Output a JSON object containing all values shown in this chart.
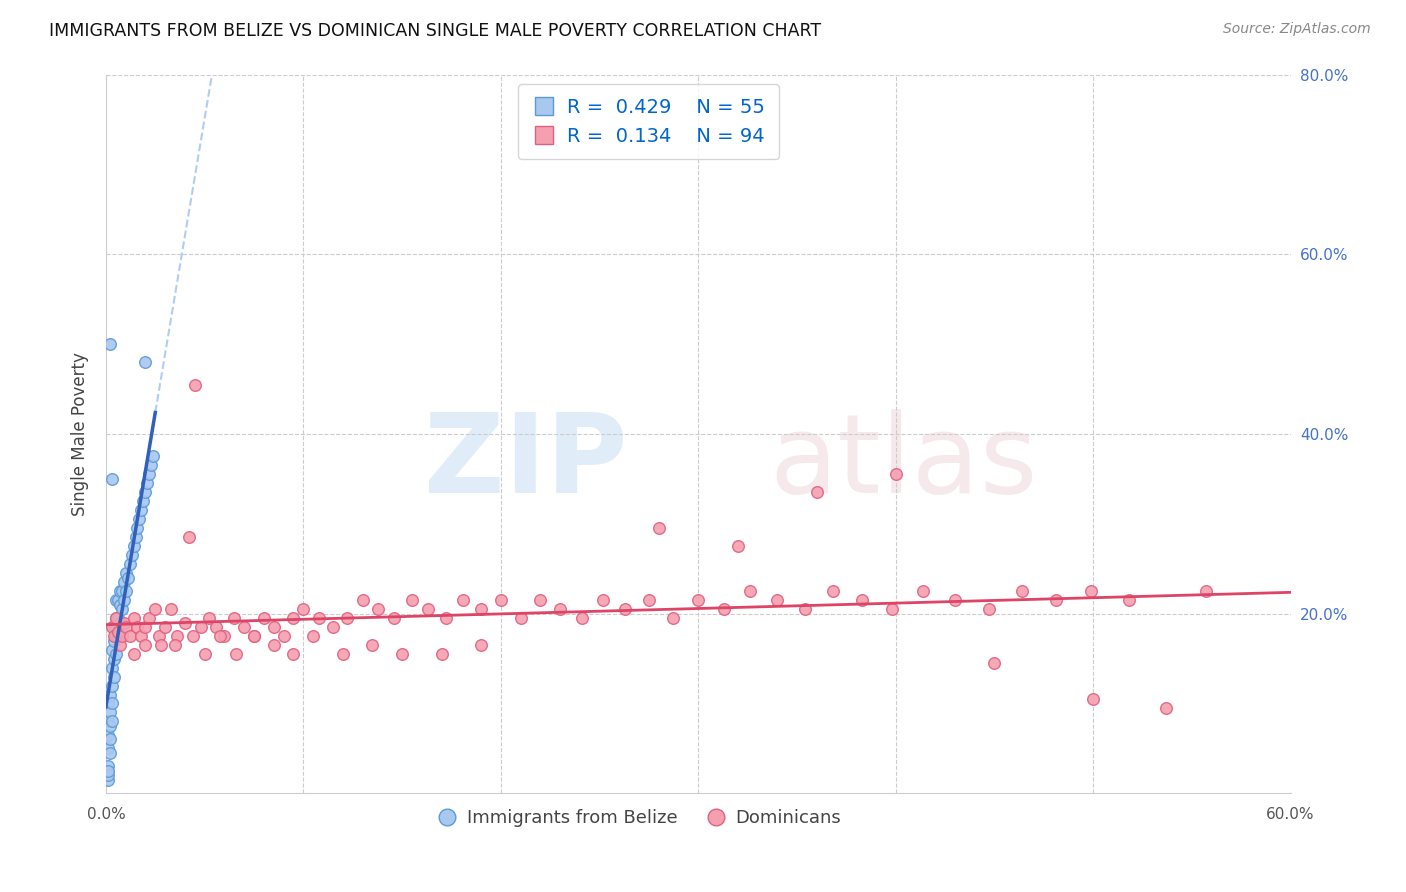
{
  "title": "IMMIGRANTS FROM BELIZE VS DOMINICAN SINGLE MALE POVERTY CORRELATION CHART",
  "source": "Source: ZipAtlas.com",
  "ylabel": "Single Male Poverty",
  "xlim": [
    0.0,
    0.6
  ],
  "ylim": [
    0.0,
    0.8
  ],
  "xtick_vals": [
    0.0,
    0.1,
    0.2,
    0.3,
    0.4,
    0.5,
    0.6
  ],
  "xticklabels": [
    "0.0%",
    "",
    "",
    "",
    "",
    "",
    "60.0%"
  ],
  "ytick_right_vals": [
    0.2,
    0.4,
    0.6,
    0.8
  ],
  "yticklabels_right": [
    "20.0%",
    "40.0%",
    "60.0%",
    "80.0%"
  ],
  "belize_fill": "#a8c8f0",
  "belize_edge": "#5b9bd5",
  "dominican_fill": "#f4a0b0",
  "dominican_edge": "#e06080",
  "trend_belize_color": "#3060bb",
  "trend_dominican_color": "#dd4466",
  "belize_R": 0.429,
  "belize_N": 55,
  "dominican_R": 0.134,
  "dominican_N": 94,
  "legend_belize_label": "Immigrants from Belize",
  "legend_dominican_label": "Dominicans",
  "grid_color": "#cccccc",
  "bg_color": "#ffffff",
  "right_axis_color": "#4472c4",
  "legend_R_color": "#0066cc",
  "legend_N_color": "#0066cc",
  "belize_x": [
    0.001,
    0.001,
    0.001,
    0.001,
    0.001,
    0.002,
    0.002,
    0.002,
    0.002,
    0.002,
    0.003,
    0.003,
    0.003,
    0.003,
    0.003,
    0.004,
    0.004,
    0.004,
    0.004,
    0.005,
    0.005,
    0.005,
    0.005,
    0.006,
    0.006,
    0.006,
    0.007,
    0.007,
    0.007,
    0.008,
    0.008,
    0.009,
    0.009,
    0.01,
    0.01,
    0.011,
    0.012,
    0.013,
    0.014,
    0.015,
    0.016,
    0.017,
    0.018,
    0.019,
    0.02,
    0.021,
    0.022,
    0.023,
    0.024,
    0.003,
    0.002,
    0.001,
    0.001,
    0.001,
    0.02
  ],
  "belize_y": [
    0.03,
    0.05,
    0.065,
    0.08,
    0.1,
    0.045,
    0.06,
    0.075,
    0.09,
    0.11,
    0.08,
    0.1,
    0.12,
    0.14,
    0.16,
    0.13,
    0.15,
    0.17,
    0.185,
    0.155,
    0.175,
    0.195,
    0.215,
    0.175,
    0.195,
    0.215,
    0.19,
    0.21,
    0.225,
    0.205,
    0.225,
    0.215,
    0.235,
    0.225,
    0.245,
    0.24,
    0.255,
    0.265,
    0.275,
    0.285,
    0.295,
    0.305,
    0.315,
    0.325,
    0.335,
    0.345,
    0.355,
    0.365,
    0.375,
    0.35,
    0.5,
    0.015,
    0.02,
    0.025,
    0.48
  ],
  "dominican_x": [
    0.003,
    0.004,
    0.005,
    0.006,
    0.007,
    0.008,
    0.009,
    0.01,
    0.012,
    0.014,
    0.016,
    0.018,
    0.02,
    0.022,
    0.025,
    0.027,
    0.03,
    0.033,
    0.036,
    0.04,
    0.044,
    0.048,
    0.052,
    0.056,
    0.06,
    0.065,
    0.07,
    0.075,
    0.08,
    0.085,
    0.09,
    0.095,
    0.1,
    0.108,
    0.115,
    0.122,
    0.13,
    0.138,
    0.146,
    0.155,
    0.163,
    0.172,
    0.181,
    0.19,
    0.2,
    0.21,
    0.22,
    0.23,
    0.241,
    0.252,
    0.263,
    0.275,
    0.287,
    0.3,
    0.313,
    0.326,
    0.34,
    0.354,
    0.368,
    0.383,
    0.398,
    0.414,
    0.43,
    0.447,
    0.464,
    0.481,
    0.499,
    0.518,
    0.537,
    0.557,
    0.014,
    0.02,
    0.028,
    0.035,
    0.042,
    0.05,
    0.058,
    0.066,
    0.075,
    0.085,
    0.095,
    0.105,
    0.12,
    0.135,
    0.15,
    0.17,
    0.19,
    0.045,
    0.28,
    0.32,
    0.36,
    0.4,
    0.45,
    0.5
  ],
  "dominican_y": [
    0.185,
    0.175,
    0.195,
    0.18,
    0.165,
    0.175,
    0.19,
    0.185,
    0.175,
    0.195,
    0.185,
    0.175,
    0.185,
    0.195,
    0.205,
    0.175,
    0.185,
    0.205,
    0.175,
    0.19,
    0.175,
    0.185,
    0.195,
    0.185,
    0.175,
    0.195,
    0.185,
    0.175,
    0.195,
    0.185,
    0.175,
    0.195,
    0.205,
    0.195,
    0.185,
    0.195,
    0.215,
    0.205,
    0.195,
    0.215,
    0.205,
    0.195,
    0.215,
    0.205,
    0.215,
    0.195,
    0.215,
    0.205,
    0.195,
    0.215,
    0.205,
    0.215,
    0.195,
    0.215,
    0.205,
    0.225,
    0.215,
    0.205,
    0.225,
    0.215,
    0.205,
    0.225,
    0.215,
    0.205,
    0.225,
    0.215,
    0.225,
    0.215,
    0.095,
    0.225,
    0.155,
    0.165,
    0.165,
    0.165,
    0.285,
    0.155,
    0.175,
    0.155,
    0.175,
    0.165,
    0.155,
    0.175,
    0.155,
    0.165,
    0.155,
    0.155,
    0.165,
    0.455,
    0.295,
    0.275,
    0.335,
    0.355,
    0.145,
    0.105
  ]
}
